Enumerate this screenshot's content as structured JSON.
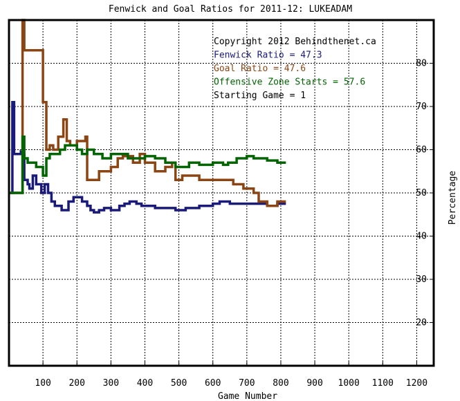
{
  "chart_data": {
    "type": "line",
    "title": "Fenwick and Goal Ratios for 2011-12: LUKEADAM",
    "xlabel": "Game Number",
    "ylabel": "Percentage",
    "xlim": [
      0,
      1250
    ],
    "ylim": [
      10,
      90
    ],
    "xticks": [
      100,
      200,
      300,
      400,
      500,
      600,
      700,
      800,
      900,
      1000,
      1100,
      1200
    ],
    "yticks": [
      20,
      30,
      40,
      50,
      60,
      70,
      80
    ],
    "grid": true,
    "annotations": [
      {
        "text": "Copyright 2012 Behindthenet.ca",
        "color": "#000000"
      },
      {
        "text": "Fenwick Ratio = 47.3",
        "color": "#1a1a7a"
      },
      {
        "text": "Goal Ratio = 47.6",
        "color": "#8b4513"
      },
      {
        "text": "Offensive Zone Starts = 57.6",
        "color": "#006400"
      },
      {
        "text": "Starting Game = 1",
        "color": "#000000"
      }
    ],
    "series": [
      {
        "color": "#1a1a7a",
        "points": [
          [
            0,
            50
          ],
          [
            10,
            50
          ],
          [
            10,
            71
          ],
          [
            15,
            71
          ],
          [
            15,
            59
          ],
          [
            35,
            59
          ],
          [
            35,
            59.5
          ],
          [
            45,
            59
          ],
          [
            45,
            53
          ],
          [
            55,
            53
          ],
          [
            55,
            52
          ],
          [
            60,
            52
          ],
          [
            60,
            51
          ],
          [
            70,
            51
          ],
          [
            70,
            54
          ],
          [
            80,
            54
          ],
          [
            80,
            52
          ],
          [
            95,
            52
          ],
          [
            95,
            50
          ],
          [
            105,
            50
          ],
          [
            105,
            52
          ],
          [
            115,
            52
          ],
          [
            115,
            50
          ],
          [
            125,
            50
          ],
          [
            125,
            48
          ],
          [
            135,
            48
          ],
          [
            135,
            47
          ],
          [
            155,
            47
          ],
          [
            155,
            46
          ],
          [
            175,
            46
          ],
          [
            175,
            48
          ],
          [
            190,
            48
          ],
          [
            190,
            49
          ],
          [
            215,
            49
          ],
          [
            215,
            48
          ],
          [
            230,
            48
          ],
          [
            230,
            47
          ],
          [
            240,
            47
          ],
          [
            240,
            46
          ],
          [
            250,
            46
          ],
          [
            250,
            45.5
          ],
          [
            265,
            45.5
          ],
          [
            265,
            46
          ],
          [
            280,
            46
          ],
          [
            280,
            46.5
          ],
          [
            300,
            46.5
          ],
          [
            300,
            46
          ],
          [
            325,
            46
          ],
          [
            325,
            47
          ],
          [
            340,
            47
          ],
          [
            340,
            47.5
          ],
          [
            355,
            47.5
          ],
          [
            355,
            48
          ],
          [
            375,
            48
          ],
          [
            375,
            47.5
          ],
          [
            390,
            47.5
          ],
          [
            390,
            47
          ],
          [
            430,
            47
          ],
          [
            430,
            46.5
          ],
          [
            490,
            46.5
          ],
          [
            490,
            46
          ],
          [
            520,
            46
          ],
          [
            520,
            46.5
          ],
          [
            560,
            46.5
          ],
          [
            560,
            47
          ],
          [
            600,
            47
          ],
          [
            600,
            47.5
          ],
          [
            620,
            47.5
          ],
          [
            620,
            48
          ],
          [
            650,
            48
          ],
          [
            650,
            47.5
          ],
          [
            760,
            47.5
          ],
          [
            760,
            47
          ],
          [
            790,
            47
          ],
          [
            790,
            47.5
          ],
          [
            815,
            47.5
          ]
        ]
      },
      {
        "color": "#8b4513",
        "points": [
          [
            0,
            50
          ],
          [
            20,
            50
          ],
          [
            20,
            50
          ],
          [
            40,
            50
          ],
          [
            40,
            90
          ],
          [
            45,
            90
          ],
          [
            45,
            83
          ],
          [
            55,
            83
          ],
          [
            55,
            83
          ],
          [
            100,
            83
          ],
          [
            100,
            71
          ],
          [
            110,
            71
          ],
          [
            110,
            60
          ],
          [
            120,
            60
          ],
          [
            120,
            61
          ],
          [
            130,
            61
          ],
          [
            130,
            60
          ],
          [
            145,
            60
          ],
          [
            145,
            63
          ],
          [
            160,
            63
          ],
          [
            160,
            67
          ],
          [
            170,
            67
          ],
          [
            170,
            62
          ],
          [
            180,
            62
          ],
          [
            180,
            61
          ],
          [
            200,
            61
          ],
          [
            200,
            62
          ],
          [
            225,
            62
          ],
          [
            225,
            63
          ],
          [
            230,
            63
          ],
          [
            230,
            53
          ],
          [
            265,
            53
          ],
          [
            265,
            55
          ],
          [
            300,
            55
          ],
          [
            300,
            56
          ],
          [
            320,
            56
          ],
          [
            320,
            58
          ],
          [
            335,
            58
          ],
          [
            335,
            58.5
          ],
          [
            365,
            58.5
          ],
          [
            365,
            57
          ],
          [
            385,
            57
          ],
          [
            385,
            59
          ],
          [
            400,
            59
          ],
          [
            400,
            57
          ],
          [
            430,
            57
          ],
          [
            430,
            55
          ],
          [
            460,
            55
          ],
          [
            460,
            56
          ],
          [
            480,
            56
          ],
          [
            480,
            57
          ],
          [
            490,
            57
          ],
          [
            490,
            53
          ],
          [
            510,
            53
          ],
          [
            510,
            54
          ],
          [
            560,
            54
          ],
          [
            560,
            53
          ],
          [
            660,
            53
          ],
          [
            660,
            52
          ],
          [
            690,
            52
          ],
          [
            690,
            51
          ],
          [
            720,
            51
          ],
          [
            720,
            50
          ],
          [
            735,
            50
          ],
          [
            735,
            48
          ],
          [
            760,
            48
          ],
          [
            760,
            47
          ],
          [
            790,
            47
          ],
          [
            790,
            48
          ],
          [
            815,
            48
          ]
        ]
      },
      {
        "color": "#006400",
        "points": [
          [
            0,
            50
          ],
          [
            40,
            50
          ],
          [
            40,
            63
          ],
          [
            45,
            63
          ],
          [
            45,
            58
          ],
          [
            55,
            58
          ],
          [
            55,
            57
          ],
          [
            80,
            57
          ],
          [
            80,
            56
          ],
          [
            100,
            56
          ],
          [
            100,
            54
          ],
          [
            110,
            54
          ],
          [
            110,
            58
          ],
          [
            120,
            58
          ],
          [
            120,
            59
          ],
          [
            150,
            59
          ],
          [
            150,
            60
          ],
          [
            165,
            60
          ],
          [
            165,
            61
          ],
          [
            200,
            61
          ],
          [
            200,
            60
          ],
          [
            215,
            60
          ],
          [
            215,
            59
          ],
          [
            230,
            59
          ],
          [
            230,
            60
          ],
          [
            250,
            60
          ],
          [
            250,
            59
          ],
          [
            275,
            59
          ],
          [
            275,
            58
          ],
          [
            300,
            58
          ],
          [
            300,
            59
          ],
          [
            350,
            59
          ],
          [
            350,
            58
          ],
          [
            400,
            58
          ],
          [
            400,
            58.5
          ],
          [
            430,
            58.5
          ],
          [
            430,
            58
          ],
          [
            460,
            58
          ],
          [
            460,
            57
          ],
          [
            490,
            57
          ],
          [
            490,
            56
          ],
          [
            530,
            56
          ],
          [
            530,
            57
          ],
          [
            560,
            57
          ],
          [
            560,
            56.5
          ],
          [
            600,
            56.5
          ],
          [
            600,
            57
          ],
          [
            630,
            57
          ],
          [
            630,
            56.5
          ],
          [
            645,
            56.5
          ],
          [
            645,
            57
          ],
          [
            670,
            57
          ],
          [
            670,
            58
          ],
          [
            700,
            58
          ],
          [
            700,
            58.5
          ],
          [
            720,
            58.5
          ],
          [
            720,
            58
          ],
          [
            760,
            58
          ],
          [
            760,
            57.5
          ],
          [
            790,
            57.5
          ],
          [
            790,
            57
          ],
          [
            815,
            57
          ]
        ]
      }
    ]
  }
}
